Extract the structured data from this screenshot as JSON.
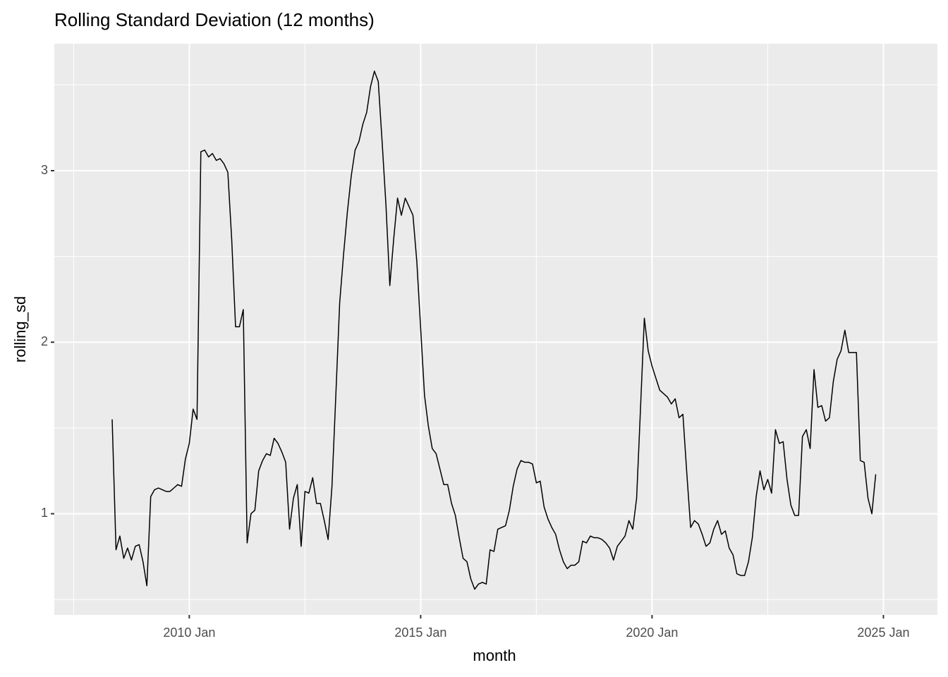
{
  "chart_data": {
    "type": "line",
    "title": "Rolling Standard Deviation (12 months)",
    "x_label": "month",
    "y_label": "rolling_sd",
    "color": "#000000",
    "grid": true,
    "panel_color": "#EBEBEB",
    "xlim": [
      "2007-02",
      "2026-03"
    ],
    "xticks": [
      {
        "value": "2010-01",
        "label": "2010 Jan"
      },
      {
        "value": "2015-01",
        "label": "2015 Jan"
      },
      {
        "value": "2020-01",
        "label": "2020 Jan"
      },
      {
        "value": "2025-01",
        "label": "2025 Jan"
      }
    ],
    "ylim": [
      0.41,
      3.74
    ],
    "yticks": [
      1,
      2,
      3
    ],
    "x": [
      "2008-05",
      "2008-06",
      "2008-07",
      "2008-08",
      "2008-09",
      "2008-10",
      "2008-11",
      "2008-12",
      "2009-01",
      "2009-02",
      "2009-03",
      "2009-04",
      "2009-05",
      "2009-06",
      "2009-07",
      "2009-08",
      "2009-09",
      "2009-10",
      "2009-11",
      "2009-12",
      "2010-01",
      "2010-02",
      "2010-03",
      "2010-04",
      "2010-05",
      "2010-06",
      "2010-07",
      "2010-08",
      "2010-09",
      "2010-10",
      "2010-11",
      "2010-12",
      "2011-01",
      "2011-02",
      "2011-03",
      "2011-04",
      "2011-05",
      "2011-06",
      "2011-07",
      "2011-08",
      "2011-09",
      "2011-10",
      "2011-11",
      "2011-12",
      "2012-01",
      "2012-02",
      "2012-03",
      "2012-04",
      "2012-05",
      "2012-06",
      "2012-07",
      "2012-08",
      "2012-09",
      "2012-10",
      "2012-11",
      "2012-12",
      "2013-01",
      "2013-02",
      "2013-03",
      "2013-04",
      "2013-05",
      "2013-06",
      "2013-07",
      "2013-08",
      "2013-09",
      "2013-10",
      "2013-11",
      "2013-12",
      "2014-01",
      "2014-02",
      "2014-03",
      "2014-04",
      "2014-05",
      "2014-06",
      "2014-07",
      "2014-08",
      "2014-09",
      "2014-10",
      "2014-11",
      "2014-12",
      "2015-01",
      "2015-02",
      "2015-03",
      "2015-04",
      "2015-05",
      "2015-06",
      "2015-07",
      "2015-08",
      "2015-09",
      "2015-10",
      "2015-11",
      "2015-12",
      "2016-01",
      "2016-02",
      "2016-03",
      "2016-04",
      "2016-05",
      "2016-06",
      "2016-07",
      "2016-08",
      "2016-09",
      "2016-10",
      "2016-11",
      "2016-12",
      "2017-01",
      "2017-02",
      "2017-03",
      "2017-04",
      "2017-05",
      "2017-06",
      "2017-07",
      "2017-08",
      "2017-09",
      "2017-10",
      "2017-11",
      "2017-12",
      "2018-01",
      "2018-02",
      "2018-03",
      "2018-04",
      "2018-05",
      "2018-06",
      "2018-07",
      "2018-08",
      "2018-09",
      "2018-10",
      "2018-11",
      "2018-12",
      "2019-01",
      "2019-02",
      "2019-03",
      "2019-04",
      "2019-05",
      "2019-06",
      "2019-07",
      "2019-08",
      "2019-09",
      "2019-10",
      "2019-11",
      "2019-12",
      "2020-01",
      "2020-02",
      "2020-03",
      "2020-04",
      "2020-05",
      "2020-06",
      "2020-07",
      "2020-08",
      "2020-09",
      "2020-10",
      "2020-11",
      "2020-12",
      "2021-01",
      "2021-02",
      "2021-03",
      "2021-04",
      "2021-05",
      "2021-06",
      "2021-07",
      "2021-08",
      "2021-09",
      "2021-10",
      "2021-11",
      "2021-12",
      "2022-01",
      "2022-02",
      "2022-03",
      "2022-04",
      "2022-05",
      "2022-06",
      "2022-07",
      "2022-08",
      "2022-09",
      "2022-10",
      "2022-11",
      "2022-12",
      "2023-01",
      "2023-02",
      "2023-03",
      "2023-04",
      "2023-05",
      "2023-06",
      "2023-07",
      "2023-08",
      "2023-09",
      "2023-10",
      "2023-11",
      "2023-12",
      "2024-01",
      "2024-02",
      "2024-03",
      "2024-04",
      "2024-05",
      "2024-06",
      "2024-07",
      "2024-08",
      "2024-09",
      "2024-10",
      "2024-11"
    ],
    "values": [
      1.55,
      0.79,
      0.87,
      0.74,
      0.8,
      0.73,
      0.81,
      0.82,
      0.72,
      0.58,
      1.1,
      1.14,
      1.15,
      1.14,
      1.13,
      1.13,
      1.15,
      1.17,
      1.16,
      1.32,
      1.41,
      1.61,
      1.55,
      3.11,
      3.12,
      3.08,
      3.1,
      3.06,
      3.07,
      3.04,
      2.99,
      2.6,
      2.09,
      2.09,
      2.19,
      0.83,
      1.0,
      1.02,
      1.25,
      1.31,
      1.35,
      1.34,
      1.44,
      1.41,
      1.36,
      1.3,
      0.91,
      1.09,
      1.17,
      0.81,
      1.13,
      1.12,
      1.21,
      1.06,
      1.06,
      0.96,
      0.85,
      1.16,
      1.69,
      2.23,
      2.51,
      2.76,
      2.97,
      3.12,
      3.17,
      3.27,
      3.34,
      3.49,
      3.58,
      3.52,
      3.17,
      2.8,
      2.33,
      2.6,
      2.84,
      2.74,
      2.84,
      2.79,
      2.74,
      2.47,
      2.08,
      1.69,
      1.51,
      1.38,
      1.35,
      1.26,
      1.17,
      1.17,
      1.06,
      0.99,
      0.86,
      0.74,
      0.72,
      0.62,
      0.56,
      0.59,
      0.6,
      0.59,
      0.79,
      0.78,
      0.91,
      0.92,
      0.93,
      1.02,
      1.16,
      1.26,
      1.31,
      1.3,
      1.3,
      1.29,
      1.18,
      1.19,
      1.04,
      0.97,
      0.92,
      0.88,
      0.79,
      0.72,
      0.68,
      0.7,
      0.7,
      0.72,
      0.84,
      0.83,
      0.87,
      0.86,
      0.86,
      0.85,
      0.83,
      0.8,
      0.73,
      0.81,
      0.84,
      0.87,
      0.96,
      0.91,
      1.09,
      1.61,
      2.14,
      1.95,
      1.86,
      1.79,
      1.72,
      1.7,
      1.68,
      1.64,
      1.67,
      1.56,
      1.58,
      1.24,
      0.92,
      0.96,
      0.94,
      0.88,
      0.81,
      0.83,
      0.91,
      0.96,
      0.88,
      0.9,
      0.8,
      0.76,
      0.65,
      0.64,
      0.64,
      0.72,
      0.86,
      1.1,
      1.25,
      1.14,
      1.2,
      1.12,
      1.49,
      1.41,
      1.42,
      1.2,
      1.05,
      0.99,
      0.99,
      1.45,
      1.49,
      1.38,
      1.84,
      1.62,
      1.63,
      1.54,
      1.56,
      1.77,
      1.9,
      1.95,
      2.07,
      1.94,
      1.94,
      1.94,
      1.31,
      1.3,
      1.09,
      1.0,
      1.23
    ]
  }
}
